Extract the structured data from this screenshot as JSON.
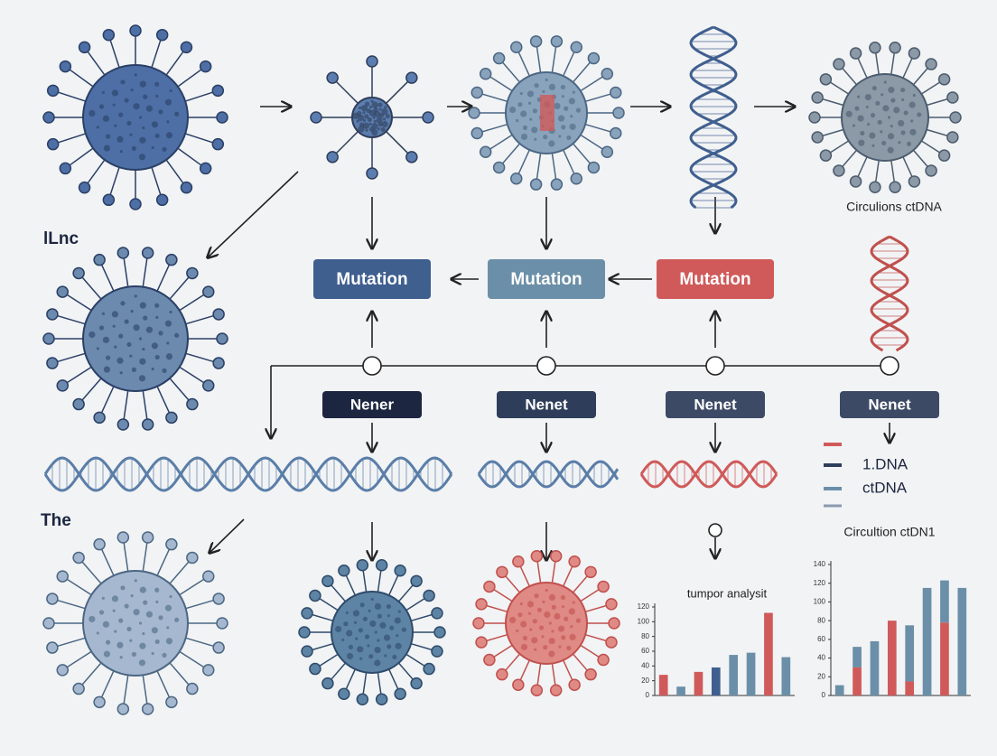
{
  "labels": {
    "top_left": "lLnc",
    "mid_left": "The",
    "circulating_top": "Circulions ctDNA",
    "circulating_chart": "Circultion ctDN1"
  },
  "mutation_boxes": [
    {
      "label": "Mutation",
      "color": "#3f5f8f"
    },
    {
      "label": "Mutation",
      "color": "#6b8fa8"
    },
    {
      "label": "Mutation",
      "color": "#d05a5a"
    }
  ],
  "nener_boxes": [
    {
      "label": "Nener",
      "color": "#1c2640"
    },
    {
      "label": "Nenet",
      "color": "#2e3e5a"
    },
    {
      "label": "Nenet",
      "color": "#3d4a66"
    },
    {
      "label": "Nenet",
      "color": "#3d4a66"
    }
  ],
  "legend": [
    {
      "name": "1.DNA",
      "color": "#2e3e5a"
    },
    {
      "name": "ctDNA",
      "color": "#6b8fa8"
    }
  ],
  "chart_data": [
    {
      "type": "bar",
      "title": "tumpor analysit",
      "values": [
        28,
        12,
        32,
        38,
        55,
        58,
        112,
        52
      ],
      "colors": [
        "#d05a5a",
        "#6b8fa8",
        "#d05a5a",
        "#3f5f8f",
        "#6b8fa8",
        "#6b8fa8",
        "#d05a5a",
        "#6b8fa8"
      ],
      "ylim": [
        0,
        120
      ],
      "yticks": [
        0,
        20,
        40,
        60,
        80,
        100,
        120
      ]
    },
    {
      "type": "stacked-bar",
      "title": "Circultion ctDN1",
      "series": [
        {
          "color": "#d05a5a",
          "values": [
            0,
            30,
            0,
            80,
            15,
            0,
            78,
            0
          ]
        },
        {
          "color": "#6b8fa8",
          "values": [
            11,
            22,
            58,
            0,
            60,
            115,
            45,
            115
          ]
        }
      ],
      "ylim": [
        0,
        140
      ],
      "yticks": [
        0,
        20,
        40,
        60,
        80,
        100,
        120,
        140
      ]
    }
  ]
}
